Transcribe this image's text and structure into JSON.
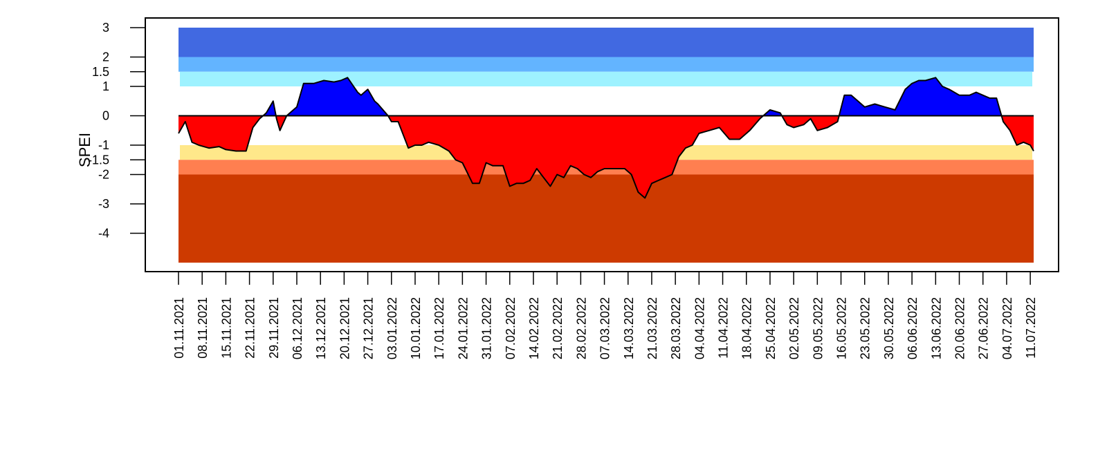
{
  "chart_data": {
    "type": "area",
    "ylabel": "SPEI",
    "xlabel": "",
    "title": "",
    "ylim": [
      -5,
      3
    ],
    "y_ticks": [
      3,
      2,
      1.5,
      1,
      0,
      -1,
      -1.5,
      -2,
      -3,
      -4
    ],
    "y_tick_labels": [
      "3",
      "2",
      "1.5",
      "1",
      "0",
      "-1",
      "-1.5",
      "-2",
      "-3",
      "-4"
    ],
    "positive_color": "#0000ff",
    "negative_color": "#ff0000",
    "bands": [
      {
        "from": 2,
        "to": 3,
        "color": "#4169e1"
      },
      {
        "from": 1.5,
        "to": 2,
        "color": "#63b4ff"
      },
      {
        "from": 1,
        "to": 1.5,
        "color": "#9ef2ff"
      },
      {
        "from": -1.5,
        "to": -1,
        "color": "#ffe88a"
      },
      {
        "from": -2,
        "to": -1.5,
        "color": "#ff7f50"
      },
      {
        "from": -5,
        "to": -2,
        "color": "#cd3a00"
      }
    ],
    "x_labels": [
      "01.11.2021",
      "08.11.2021",
      "15.11.2021",
      "22.11.2021",
      "29.11.2021",
      "06.12.2021",
      "13.12.2021",
      "20.12.2021",
      "27.12.2021",
      "03.01.2022",
      "10.01.2022",
      "17.01.2022",
      "24.01.2022",
      "31.01.2022",
      "07.02.2022",
      "14.02.2022",
      "21.02.2022",
      "28.02.2022",
      "07.03.2022",
      "14.03.2022",
      "21.03.2022",
      "28.03.2022",
      "04.04.2022",
      "11.04.2022",
      "18.04.2022",
      "25.04.2022",
      "02.05.2022",
      "09.05.2022",
      "16.05.2022",
      "23.05.2022",
      "30.05.2022",
      "06.06.2022",
      "13.06.2022",
      "20.06.2022",
      "27.06.2022",
      "04.07.2022",
      "11.07.2022"
    ],
    "series": [
      {
        "x": [
          "01.11.2021",
          "03.11.2021",
          "05.11.2021",
          "07.11.2021",
          "10.11.2021",
          "13.11.2021",
          "15.11.2021",
          "18.11.2021",
          "21.11.2021",
          "23.11.2021",
          "25.11.2021",
          "27.11.2021",
          "29.11.2021",
          "30.11.2021",
          "01.12.2021",
          "03.12.2021",
          "04.12.2021",
          "06.12.2021",
          "08.12.2021",
          "09.12.2021",
          "11.12.2021",
          "14.12.2021",
          "17.12.2021",
          "19.12.2021",
          "21.12.2021",
          "24.12.2021",
          "25.12.2021",
          "27.12.2021",
          "29.12.2021",
          "30.12.2021",
          "02.01.2022",
          "03.01.2022",
          "05.01.2022",
          "08.01.2022",
          "10.01.2022",
          "12.01.2022",
          "14.01.2022",
          "17.01.2022",
          "20.01.2022",
          "22.01.2022",
          "24.01.2022",
          "27.01.2022",
          "29.01.2022",
          "31.01.2022",
          "02.02.2022",
          "05.02.2022",
          "07.02.2022",
          "09.02.2022",
          "11.02.2022",
          "13.02.2022",
          "15.02.2022",
          "17.02.2022",
          "19.02.2022",
          "21.02.2022",
          "23.02.2022",
          "25.02.2022",
          "27.02.2022",
          "01.03.2022",
          "03.03.2022",
          "05.03.2022",
          "07.03.2022",
          "09.03.2022",
          "11.03.2022",
          "13.03.2022",
          "15.03.2022",
          "17.03.2022",
          "19.03.2022",
          "21.03.2022",
          "23.03.2022",
          "25.03.2022",
          "27.03.2022",
          "29.03.2022",
          "31.03.2022",
          "02.04.2022",
          "04.04.2022",
          "07.04.2022",
          "10.04.2022",
          "13.04.2022",
          "16.04.2022",
          "19.04.2022",
          "22.04.2022",
          "25.04.2022",
          "28.04.2022",
          "30.04.2022",
          "02.05.2022",
          "05.05.2022",
          "07.05.2022",
          "09.05.2022",
          "12.05.2022",
          "15.05.2022",
          "17.05.2022",
          "19.05.2022",
          "21.05.2022",
          "23.05.2022",
          "26.05.2022",
          "29.05.2022",
          "01.06.2022",
          "04.06.2022",
          "06.06.2022",
          "08.06.2022",
          "10.06.2022",
          "13.06.2022",
          "15.06.2022",
          "17.06.2022",
          "20.06.2022",
          "23.06.2022",
          "25.06.2022",
          "27.06.2022",
          "29.06.2022",
          "01.07.2022",
          "03.07.2022",
          "05.07.2022",
          "07.07.2022",
          "09.07.2022",
          "11.07.2022",
          "12.07.2022"
        ],
        "values": [
          -0.6,
          -0.2,
          -0.9,
          -1.0,
          -1.1,
          -1.05,
          -1.15,
          -1.2,
          -1.2,
          -0.4,
          -0.1,
          0.1,
          0.5,
          -0.1,
          -0.5,
          0.0,
          0.1,
          0.3,
          1.1,
          1.1,
          1.1,
          1.2,
          1.15,
          1.2,
          1.3,
          0.8,
          0.7,
          0.9,
          0.5,
          0.4,
          0.0,
          -0.2,
          -0.2,
          -1.1,
          -1.0,
          -1.0,
          -0.9,
          -1.0,
          -1.2,
          -1.5,
          -1.6,
          -2.3,
          -2.3,
          -1.6,
          -1.7,
          -1.7,
          -2.4,
          -2.3,
          -2.3,
          -2.2,
          -1.8,
          -2.1,
          -2.4,
          -2.0,
          -2.1,
          -1.7,
          -1.8,
          -2.0,
          -2.1,
          -1.9,
          -1.8,
          -1.8,
          -1.8,
          -1.8,
          -2.0,
          -2.6,
          -2.8,
          -2.3,
          -2.2,
          -2.1,
          -2.0,
          -1.4,
          -1.1,
          -1.0,
          -0.6,
          -0.5,
          -0.4,
          -0.8,
          -0.8,
          -0.5,
          -0.1,
          0.2,
          0.1,
          -0.3,
          -0.4,
          -0.3,
          -0.1,
          -0.5,
          -0.4,
          -0.2,
          0.7,
          0.7,
          0.5,
          0.3,
          0.4,
          0.3,
          0.2,
          0.9,
          1.1,
          1.2,
          1.2,
          1.3,
          1.0,
          0.9,
          0.7,
          0.7,
          0.8,
          0.7,
          0.6,
          0.6,
          -0.2,
          -0.5,
          -1.0,
          -0.9,
          -1.0,
          -1.2
        ]
      }
    ]
  }
}
